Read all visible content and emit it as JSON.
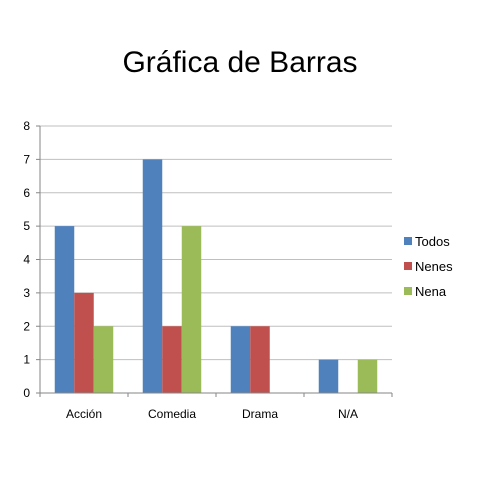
{
  "chart_data": {
    "type": "bar",
    "title": "Gráfica de Barras",
    "xlabel": "",
    "ylabel": "",
    "categories": [
      "Acción",
      "Comedia",
      "Drama",
      "N/A"
    ],
    "series": [
      {
        "name": "Todos",
        "values": [
          5,
          7,
          2,
          1
        ],
        "color": "#4F81BD"
      },
      {
        "name": "Nenes",
        "values": [
          3,
          2,
          2,
          0
        ],
        "color": "#C0504D"
      },
      {
        "name": "Nena",
        "values": [
          2,
          5,
          0,
          1
        ],
        "color": "#9BBB59"
      }
    ],
    "ylim": [
      0,
      8
    ],
    "yticks": [
      "0",
      "1",
      "2",
      "3",
      "4",
      "5",
      "6",
      "7",
      "8"
    ],
    "grid": true,
    "legend": "right",
    "colors": {
      "grid": "#BFBFBF",
      "axis": "#868686"
    }
  }
}
